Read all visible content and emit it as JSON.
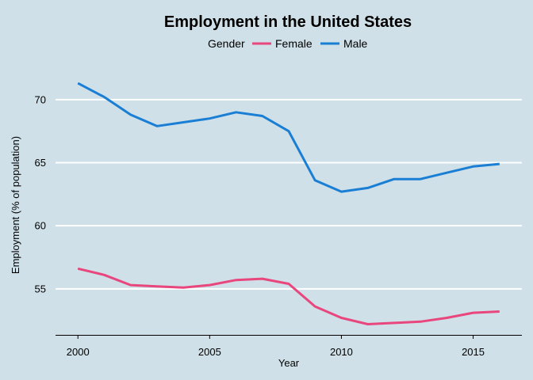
{
  "chart_data": {
    "type": "line",
    "title": "Employment in the United States",
    "xlabel": "Year",
    "ylabel": "Employment (% of population)",
    "legend": {
      "title": "Gender",
      "placement": "top"
    },
    "x": [
      2000,
      2001,
      2002,
      2003,
      2004,
      2005,
      2006,
      2007,
      2008,
      2009,
      2010,
      2011,
      2012,
      2013,
      2014,
      2015,
      2016
    ],
    "xticks": [
      2000,
      2005,
      2010,
      2015
    ],
    "yticks": [
      55,
      60,
      65,
      70
    ],
    "xlim": [
      1999.15,
      2016.85
    ],
    "ylim": [
      51.35,
      72.75
    ],
    "grid": "horizontal",
    "series": [
      {
        "name": "Female",
        "color": "#e8467c",
        "values": [
          56.6,
          56.1,
          55.3,
          55.2,
          55.1,
          55.3,
          55.7,
          55.8,
          55.4,
          53.6,
          52.7,
          52.2,
          52.3,
          52.4,
          52.7,
          53.1,
          53.2
        ]
      },
      {
        "name": "Male",
        "color": "#1a7fd4",
        "values": [
          71.3,
          70.2,
          68.8,
          67.9,
          68.2,
          68.5,
          69.0,
          68.7,
          67.5,
          63.6,
          62.7,
          63.0,
          63.7,
          63.7,
          64.2,
          64.7,
          64.9
        ]
      }
    ]
  }
}
